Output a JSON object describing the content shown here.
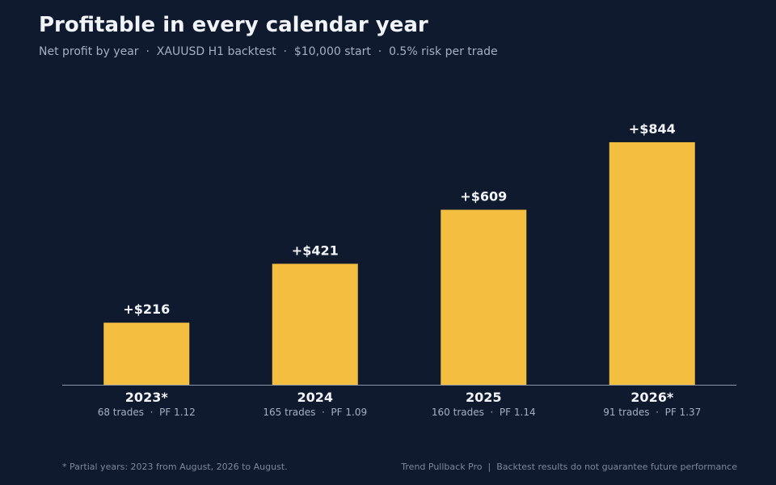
{
  "header": {
    "title": "Profitable in every calendar year",
    "subtitle": "Net profit by year  ·  XAUUSD H1 backtest  ·  $10,000 start  ·  0.5% risk per trade"
  },
  "chart_data": {
    "type": "bar",
    "categories": [
      "2023*",
      "2024",
      "2025",
      "2026*"
    ],
    "values": [
      216,
      421,
      609,
      844
    ],
    "value_labels": [
      "+$216",
      "+$421",
      "+$609",
      "+$844"
    ],
    "category_sublabels": [
      "68 trades  ·  PF 1.12",
      "165 trades  ·  PF 1.09",
      "160 trades  ·  PF 1.14",
      "91 trades  ·  PF 1.37"
    ],
    "ylim": [
      0,
      1000
    ],
    "grid": false,
    "colors": {
      "bar": "#f4be41",
      "axis": "#8a95a8",
      "value_label": "#f1f4f8",
      "category_label": "#f1f4f8",
      "sublabel": "#a4b0c2"
    }
  },
  "footer": {
    "note": "* Partial years: 2023 from August, 2026 to August.",
    "credit": "Trend Pullback Pro  |  Backtest results do not guarantee future performance"
  }
}
